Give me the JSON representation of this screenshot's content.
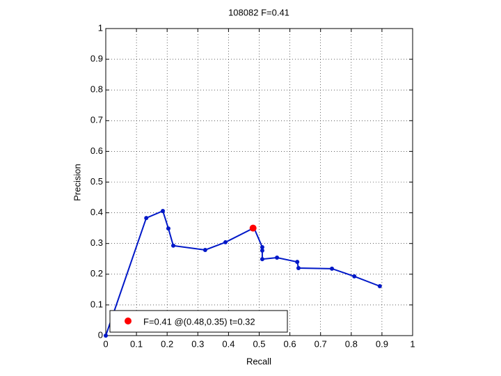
{
  "chart_data": {
    "type": "line",
    "title": "108082 F=0.41",
    "xlabel": "Recall",
    "ylabel": "Precision",
    "xlim": [
      0,
      1
    ],
    "ylim": [
      0,
      1
    ],
    "xticks": [
      0,
      0.1,
      0.2,
      0.3,
      0.4,
      0.5,
      0.6,
      0.7,
      0.8,
      0.9,
      1
    ],
    "yticks": [
      0,
      0.1,
      0.2,
      0.3,
      0.4,
      0.5,
      0.6,
      0.7,
      0.8,
      0.9,
      1
    ],
    "grid": true,
    "legend": "lower left",
    "series": [
      {
        "color": "#0018c8",
        "mode": "lines+markers",
        "x": [
          0,
          0.132,
          0.186,
          0.204,
          0.22,
          0.324,
          0.39,
          0.483,
          0.51,
          0.51,
          0.51,
          0.558,
          0.624,
          0.628,
          0.737,
          0.81,
          0.893
        ],
        "values": [
          0,
          0.383,
          0.406,
          0.349,
          0.293,
          0.279,
          0.304,
          0.351,
          0.288,
          0.277,
          0.249,
          0.254,
          0.24,
          0.22,
          0.218,
          0.193,
          0.161
        ]
      },
      {
        "name": "F=0.41 @(0.48,0.35) t=0.32",
        "color": "#ff0000",
        "mode": "markers",
        "x": [
          0.48
        ],
        "values": [
          0.35
        ]
      }
    ]
  }
}
